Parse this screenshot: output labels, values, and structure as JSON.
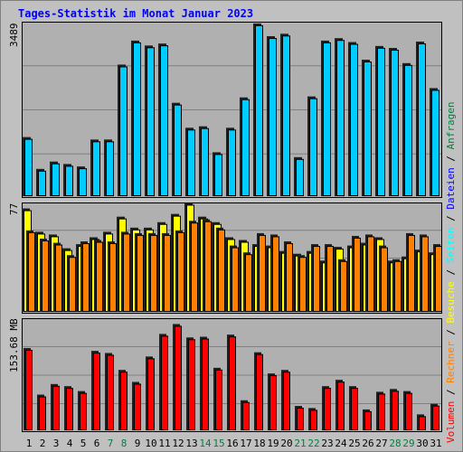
{
  "title": "Tages-Statistik im Monat Januar 2023",
  "colors": {
    "background": "#c0c0c0",
    "panel": "#b0b0b0",
    "grid": "#808080",
    "title": "#0000ff",
    "anfragen": "#00ccff",
    "dateien": "#0000ff",
    "seiten": "#00ffff",
    "besuche": "#ffff00",
    "rechner": "#ff8000",
    "volumen": "#ff0000",
    "weekday": "#000000",
    "weekend": "#008040"
  },
  "legend": {
    "volumen": "Volumen",
    "sep1": " / ",
    "rechner": "Rechner",
    "sep2": " / ",
    "besuche": "Besuche",
    "sep3": " / ",
    "seiten": "Seiten",
    "sep4": " / ",
    "dateien": "Dateien",
    "sep5": " / ",
    "anfragen": "Anfragen"
  },
  "chart_data": [
    {
      "type": "bar",
      "panel": "hits",
      "ymax_label": "3489",
      "ylim": [
        0,
        3489
      ],
      "categories": [
        "1",
        "2",
        "3",
        "4",
        "5",
        "6",
        "7",
        "8",
        "9",
        "10",
        "11",
        "12",
        "13",
        "14",
        "15",
        "16",
        "17",
        "18",
        "19",
        "20",
        "21",
        "22",
        "23",
        "24",
        "25",
        "26",
        "27",
        "28",
        "29",
        "30",
        "31"
      ],
      "weekend": [
        false,
        false,
        false,
        false,
        false,
        false,
        true,
        true,
        false,
        false,
        false,
        false,
        false,
        true,
        true,
        false,
        false,
        false,
        false,
        false,
        true,
        true,
        false,
        false,
        false,
        false,
        false,
        true,
        true,
        false,
        false
      ],
      "series": [
        {
          "key": "anfragen",
          "values": [
            1170,
            520,
            670,
            620,
            570,
            1120,
            1120,
            2650,
            3140,
            3040,
            3080,
            1870,
            1360,
            1390,
            860,
            1360,
            1980,
            3490,
            3230,
            3280,
            760,
            2000,
            3140,
            3190,
            3110,
            2750,
            3030,
            2990,
            2680,
            3120,
            2170
          ]
        }
      ]
    },
    {
      "type": "bar",
      "panel": "visits",
      "ymax_label": "77",
      "ylim": [
        0,
        77
      ],
      "categories": [
        "1",
        "2",
        "3",
        "4",
        "5",
        "6",
        "7",
        "8",
        "9",
        "10",
        "11",
        "12",
        "13",
        "14",
        "15",
        "16",
        "17",
        "18",
        "19",
        "20",
        "21",
        "22",
        "23",
        "24",
        "25",
        "26",
        "27",
        "28",
        "29",
        "30",
        "31"
      ],
      "series": [
        {
          "key": "besuche",
          "values": [
            74,
            57,
            55,
            45,
            48,
            53,
            57,
            68,
            60,
            60,
            64,
            70,
            78,
            68,
            64,
            53,
            51,
            48,
            47,
            43,
            41,
            43,
            36,
            46,
            47,
            49,
            53,
            36,
            39,
            44,
            42
          ]
        },
        {
          "key": "rechner",
          "values": [
            58,
            52,
            49,
            40,
            50,
            51,
            50,
            57,
            56,
            56,
            56,
            58,
            65,
            66,
            60,
            47,
            42,
            56,
            55,
            50,
            40,
            48,
            48,
            37,
            54,
            55,
            47,
            37,
            56,
            55,
            48
          ]
        }
      ]
    },
    {
      "type": "bar",
      "panel": "volume",
      "ymax_label": "153.68 MB",
      "ylim": [
        0,
        153.68
      ],
      "categories": [
        "1",
        "2",
        "3",
        "4",
        "5",
        "6",
        "7",
        "8",
        "9",
        "10",
        "11",
        "12",
        "13",
        "14",
        "15",
        "16",
        "17",
        "18",
        "19",
        "20",
        "21",
        "22",
        "23",
        "24",
        "25",
        "26",
        "27",
        "28",
        "29",
        "30",
        "31"
      ],
      "series": [
        {
          "key": "volumen",
          "values": [
            114,
            48,
            63,
            60,
            53,
            110,
            107,
            83,
            66,
            102,
            134,
            148,
            129,
            130,
            86,
            133,
            40,
            108,
            78,
            83,
            32,
            29,
            60,
            69,
            60,
            27,
            52,
            56,
            53,
            20,
            35
          ]
        }
      ]
    }
  ]
}
